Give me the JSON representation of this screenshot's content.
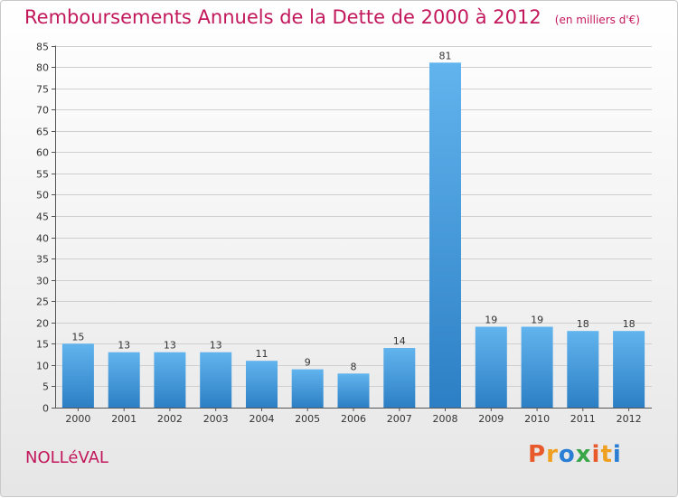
{
  "title": "Remboursements Annuels de la Dette de 2000 à 2012",
  "unit_note": "(en milliers d'€)",
  "commune": "NOLLéVAL",
  "brand": {
    "text": "Proxiti",
    "letters": [
      "P",
      "r",
      "o",
      "x",
      "i",
      "t",
      "i"
    ],
    "colors": [
      "#e8592b",
      "#f0a020",
      "#2a7fd4",
      "#3aa64a",
      "#e8592b",
      "#f0a020",
      "#2a7fd4"
    ]
  },
  "colors": {
    "bar_light": "#62b4ee",
    "bar_dark": "#2c7fc4",
    "title": "#c2185b",
    "grid": "#cfcfcf"
  },
  "chart_data": {
    "type": "bar",
    "title": "Remboursements Annuels de la Dette de 2000 à 2012",
    "categories": [
      "2000",
      "2001",
      "2002",
      "2003",
      "2004",
      "2005",
      "2006",
      "2007",
      "2008",
      "2009",
      "2010",
      "2011",
      "2012"
    ],
    "values": [
      15,
      13,
      13,
      13,
      11,
      9,
      8,
      14,
      81,
      19,
      19,
      18,
      18
    ],
    "ylim": [
      0,
      85
    ],
    "yticks": [
      0,
      5,
      10,
      15,
      20,
      25,
      30,
      35,
      40,
      45,
      50,
      55,
      60,
      65,
      70,
      75,
      80,
      85
    ],
    "grid": true,
    "data_labels": true
  }
}
